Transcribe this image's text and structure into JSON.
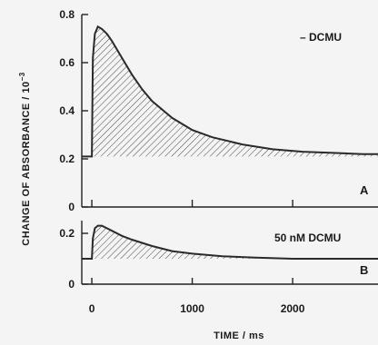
{
  "chart_data": {
    "type": "line",
    "xlabel": "TIME / ms",
    "ylabel": "CHANGE OF ABSORBANCE / 10",
    "ylabel_exponent": "−3",
    "x_ticks": [
      "0",
      "1000",
      "2000"
    ],
    "xlim": [
      -100,
      2850
    ],
    "panels": [
      {
        "letter": "A",
        "annotation": "– DCMU",
        "ylim": [
          0,
          0.8
        ],
        "y_ticks": [
          "0",
          "0.2",
          "0.4",
          "0.6",
          "0.8"
        ],
        "baseline": 0.21,
        "series": {
          "x": [
            -100,
            0,
            10,
            30,
            60,
            100,
            150,
            200,
            300,
            400,
            500,
            600,
            800,
            1000,
            1200,
            1500,
            1800,
            2100,
            2400,
            2700,
            2850
          ],
          "y": [
            0.21,
            0.21,
            0.62,
            0.72,
            0.75,
            0.74,
            0.72,
            0.69,
            0.62,
            0.55,
            0.49,
            0.44,
            0.37,
            0.32,
            0.29,
            0.26,
            0.24,
            0.23,
            0.225,
            0.22,
            0.22
          ]
        }
      },
      {
        "letter": "B",
        "annotation": "50 nM DCMU",
        "ylim": [
          0,
          0.25
        ],
        "y_ticks": [
          "0",
          "0.2"
        ],
        "baseline": 0.1,
        "series": {
          "x": [
            -100,
            0,
            10,
            30,
            60,
            100,
            200,
            300,
            400,
            600,
            800,
            1000,
            1300,
            1600,
            2000,
            2400,
            2850
          ],
          "y": [
            0.1,
            0.1,
            0.18,
            0.22,
            0.23,
            0.23,
            0.21,
            0.19,
            0.175,
            0.15,
            0.13,
            0.12,
            0.11,
            0.105,
            0.1,
            0.1,
            0.1
          ]
        }
      }
    ]
  }
}
